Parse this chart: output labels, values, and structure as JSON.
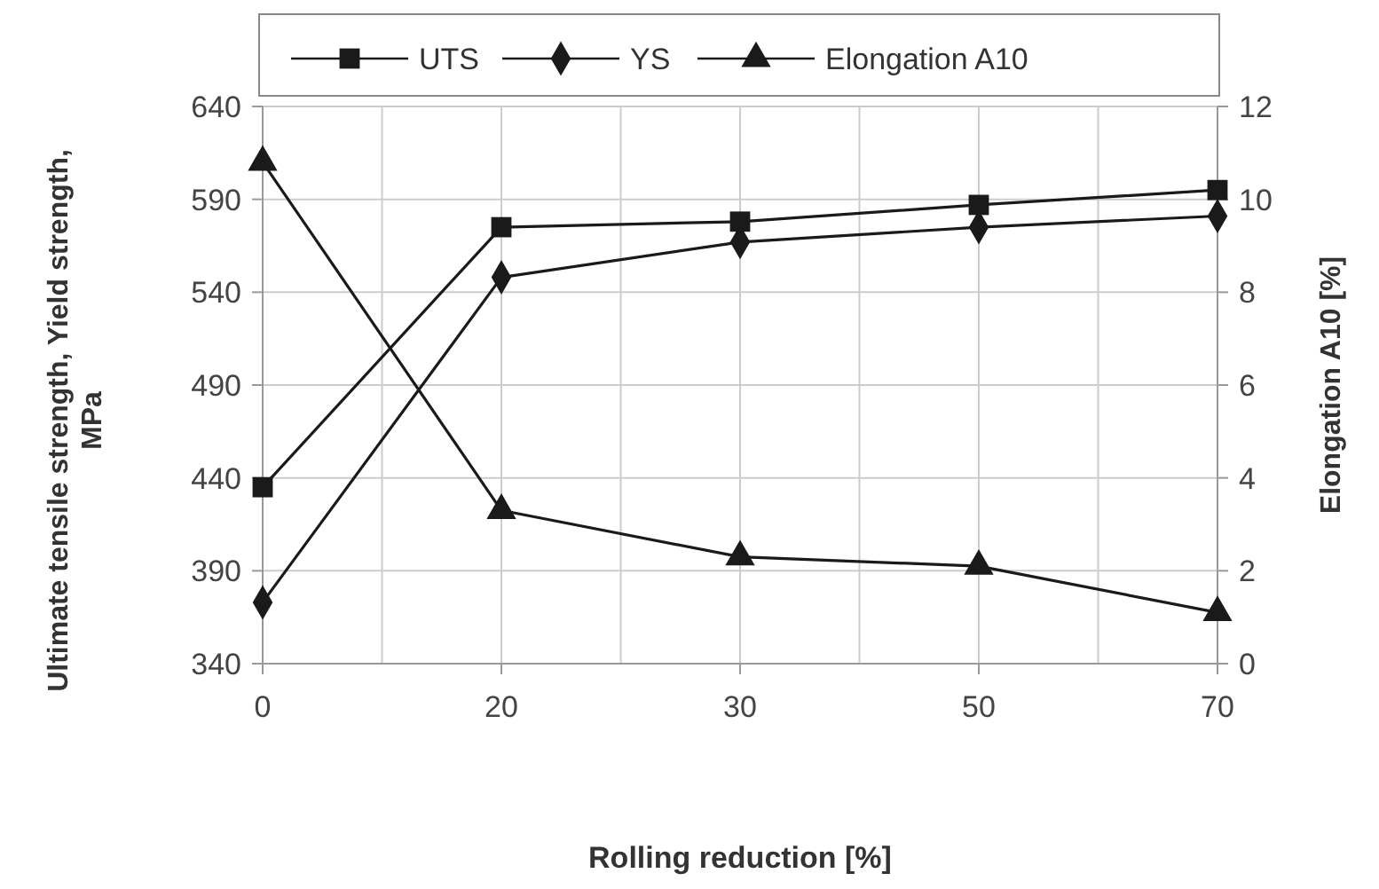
{
  "chart_data": {
    "type": "line",
    "xlabel": "Rolling reduction [%]",
    "ylabel": "Ultimate tensile strength, Yield strength, MPa",
    "y2label": "Elongation A10 [%]",
    "categories": [
      "0",
      "20",
      "30",
      "50",
      "70"
    ],
    "series": [
      {
        "name": "UTS",
        "color": "#1a1a1a",
        "marker": "square",
        "values": [
          435,
          575,
          578,
          587,
          595
        ]
      },
      {
        "name": "YS",
        "color": "#1a1a1a",
        "marker": "diamond",
        "values": [
          373,
          548,
          567,
          575,
          581
        ]
      },
      {
        "name": "Elongation A10",
        "color": "#1a1a1a",
        "marker": "triangle",
        "axis": "y2",
        "values": [
          10.8,
          3.3,
          2.3,
          2.1,
          1.1
        ]
      }
    ],
    "ylim": [
      340,
      640
    ],
    "yticks": [
      340,
      390,
      440,
      490,
      540,
      590,
      640
    ],
    "y2lim": [
      0,
      12
    ],
    "y2ticks": [
      0,
      2,
      4,
      6,
      8,
      10,
      12
    ],
    "grid": true,
    "legend": "top",
    "line_style": "solid"
  }
}
